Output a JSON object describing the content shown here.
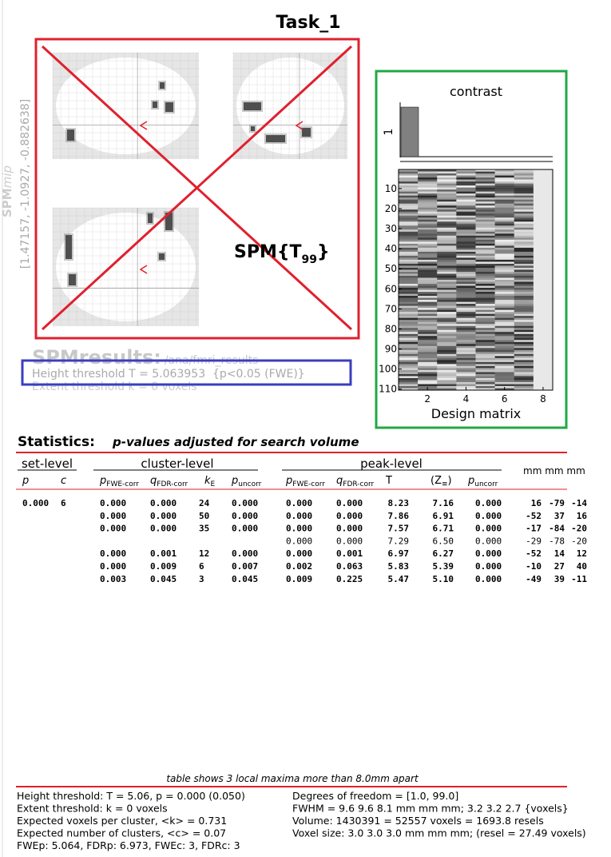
{
  "title": "Task_1",
  "mip": {
    "side_label": {
      "main": "SPM",
      "italic": "mip"
    },
    "coords": "[1.47157, -1.0927, -0.882638]",
    "stat_label": {
      "main": "SPM{T",
      "sub": "99",
      "post": "}"
    }
  },
  "contrast": {
    "title": "contrast",
    "weight_label": 1
  },
  "design_matrix": {
    "yticks": [
      10,
      20,
      30,
      40,
      50,
      60,
      70,
      80,
      90,
      100,
      110
    ],
    "xticks": [
      2,
      4,
      6,
      8
    ],
    "label": "Design matrix"
  },
  "results": {
    "heading": "SPMresults:",
    "path": "/ana/fmri_results",
    "height": "Height threshold T = 5.063953  {p<0.05 (FWE)}",
    "extent": "Extent threshold k = 0 voxels"
  },
  "statistics": {
    "title": "Statistics:",
    "subtitle": "p-values adjusted for search volume",
    "groups": [
      "set-level",
      "cluster-level",
      "peak-level"
    ],
    "columns": [
      {
        "main": "p"
      },
      {
        "main": "c"
      },
      {
        "main": "p",
        "sub": "FWE-corr"
      },
      {
        "main": "q",
        "sub": "FDR-corr"
      },
      {
        "main": "k",
        "sub": "E"
      },
      {
        "main": "p",
        "sub": "uncorr"
      },
      {
        "main": "p",
        "sub": "FWE-corr"
      },
      {
        "main": "q",
        "sub": "FDR-corr"
      },
      {
        "main": "T"
      },
      {
        "main": "(Z",
        "sub": "≡",
        "post": ")"
      },
      {
        "main": "p",
        "sub": "uncorr"
      }
    ],
    "mm_header": "mm mm mm",
    "rows": [
      {
        "bold": true,
        "cells": [
          "0.000",
          "6",
          "0.000",
          "0.000",
          "24",
          "0.000",
          "0.000",
          "0.000",
          "8.23",
          "7.16",
          "0.000",
          "16",
          "-79",
          "-14"
        ]
      },
      {
        "bold": true,
        "cells": [
          null,
          null,
          "0.000",
          "0.000",
          "50",
          "0.000",
          "0.000",
          "0.000",
          "7.86",
          "6.91",
          "0.000",
          "-52",
          "37",
          "16"
        ]
      },
      {
        "bold": true,
        "cells": [
          null,
          null,
          "0.000",
          "0.000",
          "35",
          "0.000",
          "0.000",
          "0.000",
          "7.57",
          "6.71",
          "0.000",
          "-17",
          "-84",
          "-20"
        ]
      },
      {
        "bold": false,
        "cells": [
          null,
          null,
          null,
          null,
          null,
          null,
          "0.000",
          "0.000",
          "7.29",
          "6.50",
          "0.000",
          "-29",
          "-78",
          "-20"
        ]
      },
      {
        "bold": true,
        "cells": [
          null,
          null,
          "0.000",
          "0.001",
          "12",
          "0.000",
          "0.000",
          "0.001",
          "6.97",
          "6.27",
          "0.000",
          "-52",
          "14",
          "12"
        ]
      },
      {
        "bold": true,
        "cells": [
          null,
          null,
          "0.000",
          "0.009",
          "6",
          "0.007",
          "0.002",
          "0.063",
          "5.83",
          "5.39",
          "0.000",
          "-10",
          "27",
          "40"
        ]
      },
      {
        "bold": true,
        "cells": [
          null,
          null,
          "0.003",
          "0.045",
          "3",
          "0.045",
          "0.009",
          "0.225",
          "5.47",
          "5.10",
          "0.000",
          "-49",
          "39",
          "-11"
        ]
      }
    ]
  },
  "footer": {
    "note": "table shows 3 local maxima more than 8.0mm apart",
    "left": [
      "Height threshold: T = 5.06, p = 0.000 (0.050)",
      "Extent threshold: k = 0 voxels",
      "Expected voxels per cluster, <k> = 0.731",
      "Expected number of clusters, <c> = 0.07",
      "FWEp: 5.064, FDRp: 6.973, FWEc: 3, FDRc: 3"
    ],
    "right": [
      "Degrees of freedom = [1.0, 99.0]",
      "FWHM = 9.6 9.6 8.1 mm mm mm; 3.2 3.2 2.7 {voxels}",
      "Volume: 1430391 = 52557 voxels = 1693.8 resels",
      "Voxel size: 3.0 3.0 3.0 mm mm mm; (resel = 27.49 voxels)"
    ]
  }
}
